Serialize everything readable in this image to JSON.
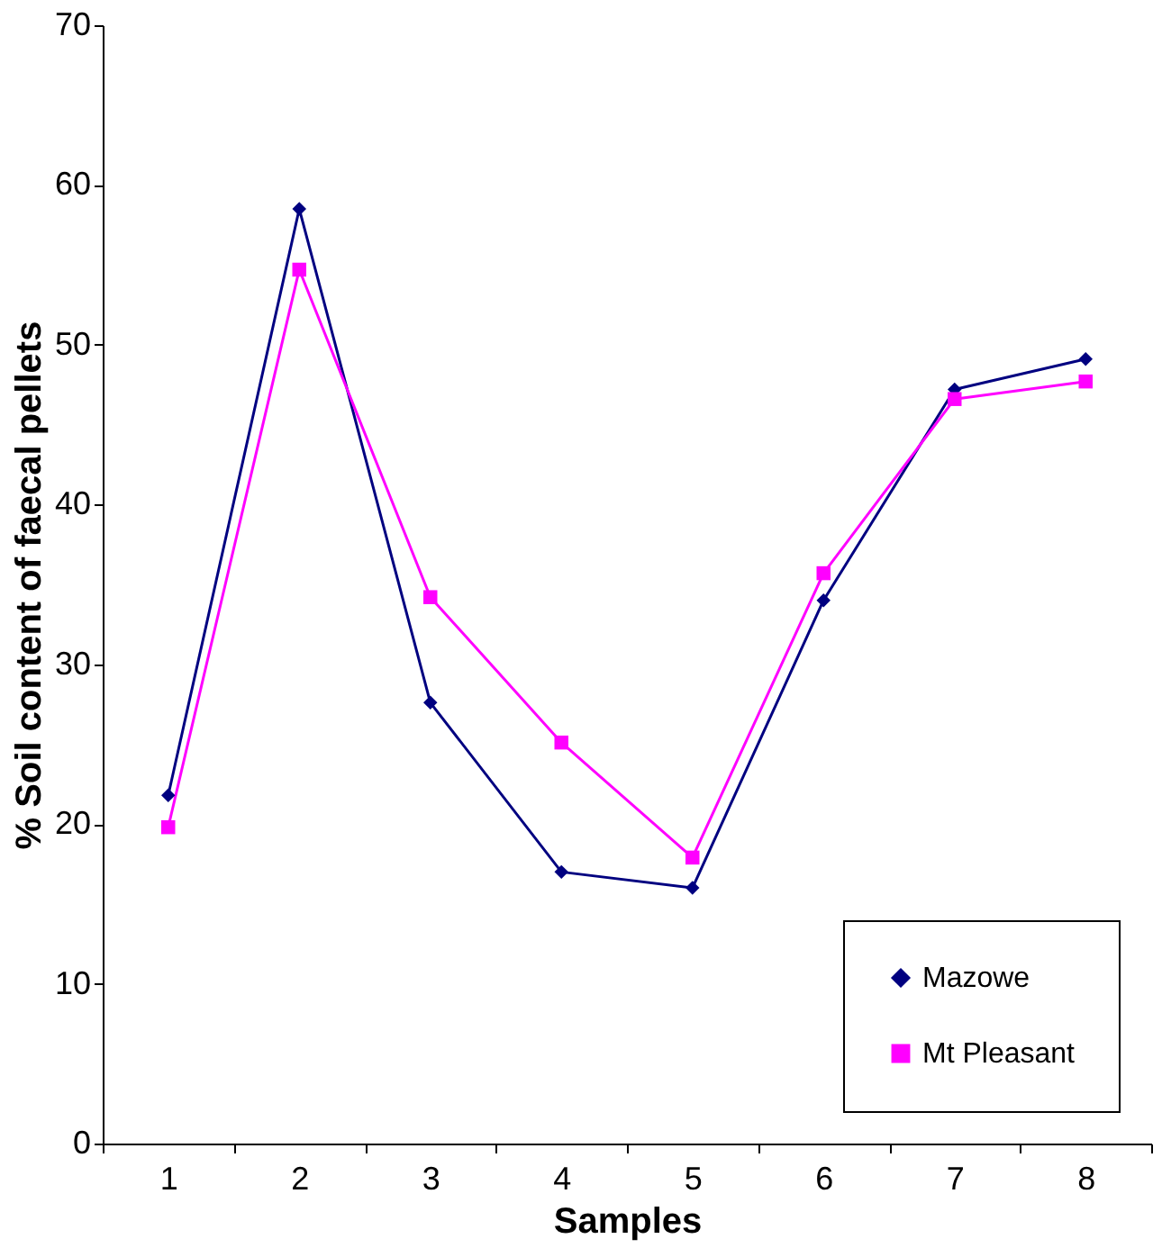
{
  "chart_data": {
    "type": "line",
    "xlabel": "Samples",
    "ylabel": "% Soil content of faecal pellets",
    "categories": [
      "1",
      "2",
      "3",
      "4",
      "5",
      "6",
      "7",
      "8"
    ],
    "series": [
      {
        "name": "Mazowe",
        "color": "#000080",
        "marker": "diamond",
        "values": [
          21.8,
          58.5,
          27.6,
          17.0,
          16.0,
          34.0,
          47.2,
          49.1
        ]
      },
      {
        "name": "Mt Pleasant",
        "color": "#ff00ff",
        "marker": "square",
        "values": [
          19.8,
          54.7,
          34.2,
          25.1,
          17.9,
          35.7,
          46.6,
          47.7
        ]
      }
    ],
    "ylim": [
      0,
      70
    ],
    "yticks": [
      0,
      10,
      20,
      30,
      40,
      50,
      60,
      70
    ],
    "grid": false,
    "line_style": "solid",
    "legend": "bottom right"
  }
}
